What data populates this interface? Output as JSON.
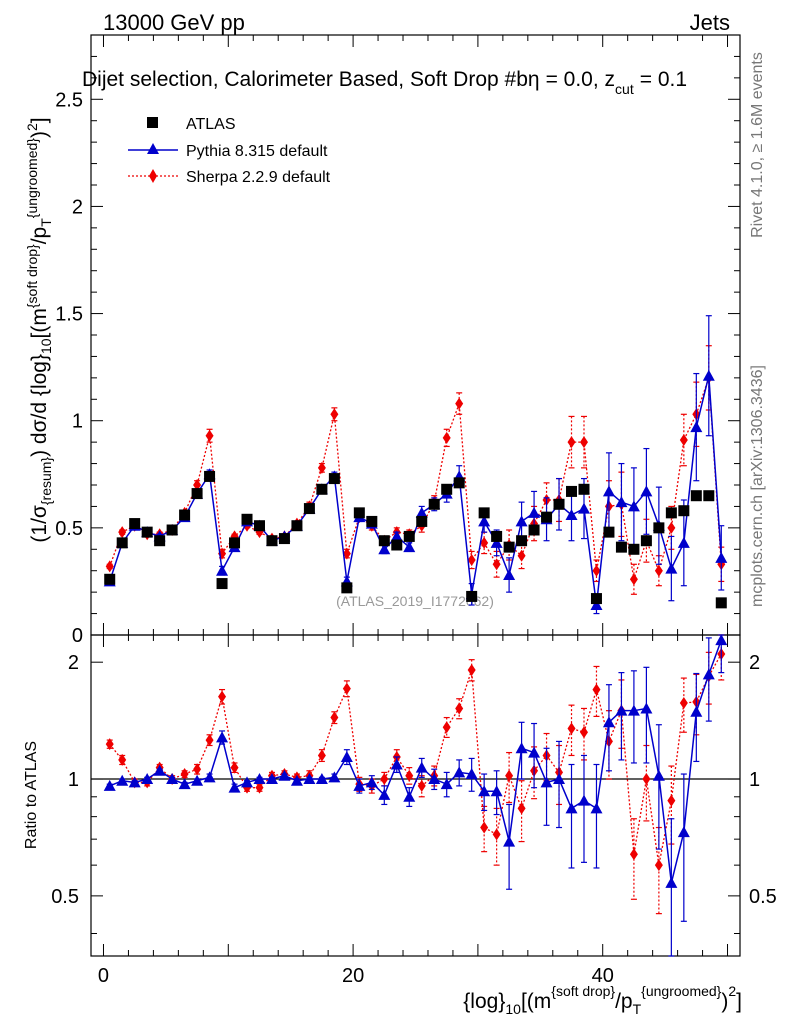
{
  "header": {
    "left": "13000 GeV pp",
    "right": "Jets"
  },
  "plot_title": "Dijet selection, Calorimeter Based, Soft Drop #b",
  "plot_title_extra": "= 0.0, z",
  "plot_title_sub": "cut",
  "plot_title_end": "= 0.1",
  "plot_title_eta": "η",
  "side_top": "Rivet 4.1.0, ≥ 1.6M events",
  "side_bottom": "mcplots.cern.ch [arXiv:1306.3436]",
  "watermark": "(ATLAS_2019_I1772062)",
  "ylabel_main": "(1/σ{resum}) dσ/d {log}10[(m{soft drop}/pT{ungroomed})2]",
  "ylabel_ratio": "Ratio to ATLAS",
  "xlabel": "{log}10[(m{soft drop}/pT{ungroomed})2]",
  "legend": [
    "ATLAS",
    "Pythia 8.315 default",
    "Sherpa 2.2.9 default"
  ],
  "colors": {
    "atlas": "#000000",
    "pythia": "#0000cc",
    "sherpa": "#ee0000"
  },
  "chart_data": {
    "type": "scatter",
    "x": [
      0.5,
      1.5,
      2.5,
      3.5,
      4.5,
      5.5,
      6.5,
      7.5,
      8.5,
      9.5,
      10.5,
      11.5,
      12.5,
      13.5,
      14.5,
      15.5,
      16.5,
      17.5,
      18.5,
      19.5,
      20.5,
      21.5,
      22.5,
      23.5,
      24.5,
      25.5,
      26.5,
      27.5,
      28.5,
      29.5,
      30.5,
      31.5,
      32.5,
      33.5,
      34.5,
      35.5,
      36.5,
      37.5,
      38.5,
      39.5,
      40.5,
      41.5,
      42.5,
      43.5,
      44.5,
      45.5,
      46.5,
      47.5,
      48.5,
      49.5
    ],
    "xlim": [
      -1,
      51
    ],
    "x_ticks": [
      0,
      20,
      40
    ],
    "main_ylim": [
      0,
      2.8
    ],
    "main_y_ticks": [
      "0",
      "0.5",
      "1",
      "1.5",
      "2",
      "2.5"
    ],
    "ratio_ylim": [
      0.35,
      2.35
    ],
    "ratio_y_ticks": [
      "0.5",
      "1",
      "2"
    ],
    "series": [
      {
        "name": "ATLAS",
        "values": [
          0.26,
          0.43,
          0.52,
          0.48,
          0.44,
          0.49,
          0.56,
          0.66,
          0.74,
          0.24,
          0.43,
          0.54,
          0.51,
          0.44,
          0.45,
          0.51,
          0.59,
          0.68,
          0.73,
          0.22,
          0.57,
          0.53,
          0.44,
          0.42,
          0.46,
          0.53,
          0.61,
          0.68,
          0.71,
          0.18,
          0.57,
          0.46,
          0.41,
          0.44,
          0.49,
          0.55,
          0.61,
          0.67,
          0.68,
          0.17,
          0.48,
          0.41,
          0.4,
          0.44,
          0.5,
          0.57,
          0.58,
          0.65,
          0.65,
          0.15
        ]
      },
      {
        "name": "Pythia 8.315 default",
        "values": [
          0.25,
          0.43,
          0.51,
          0.48,
          0.46,
          0.49,
          0.55,
          0.66,
          0.75,
          0.3,
          0.41,
          0.53,
          0.51,
          0.44,
          0.46,
          0.51,
          0.59,
          0.68,
          0.74,
          0.25,
          0.55,
          0.52,
          0.4,
          0.46,
          0.41,
          0.57,
          0.61,
          0.66,
          0.74,
          0.19,
          0.53,
          0.43,
          0.28,
          0.53,
          0.57,
          0.54,
          0.61,
          0.56,
          0.59,
          0.14,
          0.67,
          0.62,
          0.6,
          0.67,
          0.51,
          0.31,
          0.43,
          0.97,
          1.21,
          0.36
        ],
        "errors": [
          0.01,
          0.01,
          0.01,
          0.01,
          0.01,
          0.01,
          0.01,
          0.01,
          0.02,
          0.02,
          0.01,
          0.01,
          0.01,
          0.01,
          0.01,
          0.01,
          0.01,
          0.01,
          0.02,
          0.02,
          0.02,
          0.02,
          0.02,
          0.02,
          0.02,
          0.03,
          0.03,
          0.04,
          0.05,
          0.05,
          0.05,
          0.06,
          0.08,
          0.09,
          0.1,
          0.1,
          0.12,
          0.12,
          0.14,
          0.04,
          0.18,
          0.18,
          0.18,
          0.2,
          0.18,
          0.15,
          0.2,
          0.25,
          0.28,
          0.15
        ]
      },
      {
        "name": "Sherpa 2.2.9 default",
        "values": [
          0.32,
          0.48,
          0.51,
          0.47,
          0.47,
          0.49,
          0.57,
          0.7,
          0.93,
          0.38,
          0.46,
          0.51,
          0.48,
          0.45,
          0.46,
          0.52,
          0.6,
          0.78,
          1.03,
          0.38,
          0.55,
          0.51,
          0.44,
          0.48,
          0.47,
          0.51,
          0.62,
          0.92,
          1.08,
          0.35,
          0.43,
          0.33,
          0.42,
          0.37,
          0.52,
          0.63,
          0.63,
          0.9,
          0.9,
          0.3,
          0.6,
          0.61,
          0.26,
          0.44,
          0.3,
          0.5,
          0.91,
          1.03,
          1.2,
          0.33
        ],
        "errors": [
          0.01,
          0.01,
          0.01,
          0.01,
          0.01,
          0.01,
          0.01,
          0.02,
          0.03,
          0.02,
          0.01,
          0.01,
          0.01,
          0.01,
          0.01,
          0.01,
          0.02,
          0.02,
          0.03,
          0.02,
          0.02,
          0.02,
          0.02,
          0.02,
          0.02,
          0.03,
          0.03,
          0.04,
          0.05,
          0.04,
          0.05,
          0.06,
          0.07,
          0.06,
          0.08,
          0.08,
          0.1,
          0.12,
          0.12,
          0.05,
          0.12,
          0.15,
          0.07,
          0.1,
          0.07,
          0.1,
          0.12,
          0.15,
          0.15,
          0.08
        ]
      }
    ],
    "ratio_series": [
      {
        "name": "Pythia 8.315 default",
        "values": [
          0.96,
          0.99,
          0.98,
          1.0,
          1.05,
          1.0,
          0.97,
          0.99,
          1.01,
          1.28,
          0.95,
          0.98,
          1.0,
          1.0,
          1.02,
          0.99,
          1.0,
          1.0,
          1.01,
          1.14,
          0.96,
          0.98,
          0.91,
          1.09,
          0.9,
          1.07,
          1.0,
          0.97,
          1.04,
          1.03,
          0.93,
          0.93,
          0.69,
          1.2,
          1.17,
          0.98,
          1.0,
          0.84,
          0.88,
          0.84,
          1.4,
          1.5,
          1.5,
          1.52,
          1.02,
          0.54,
          0.73,
          1.49,
          1.86,
          2.28
        ],
        "errors": [
          0.01,
          0.01,
          0.01,
          0.01,
          0.01,
          0.01,
          0.01,
          0.01,
          0.02,
          0.05,
          0.02,
          0.01,
          0.01,
          0.01,
          0.01,
          0.01,
          0.01,
          0.01,
          0.02,
          0.05,
          0.04,
          0.04,
          0.05,
          0.05,
          0.05,
          0.06,
          0.06,
          0.07,
          0.08,
          0.1,
          0.1,
          0.12,
          0.17,
          0.2,
          0.22,
          0.22,
          0.25,
          0.25,
          0.27,
          0.25,
          0.35,
          0.38,
          0.4,
          0.42,
          0.36,
          0.25,
          0.3,
          0.38,
          0.45,
          0.4
        ]
      },
      {
        "name": "Sherpa 2.2.9 default",
        "values": [
          1.23,
          1.12,
          0.98,
          0.98,
          1.07,
          1.0,
          1.03,
          1.06,
          1.26,
          1.63,
          1.07,
          0.95,
          0.95,
          1.02,
          1.03,
          1.01,
          1.02,
          1.15,
          1.44,
          1.71,
          0.97,
          0.96,
          1.0,
          1.14,
          1.02,
          0.96,
          1.02,
          1.36,
          1.52,
          1.91,
          0.75,
          0.72,
          1.02,
          0.84,
          1.05,
          1.15,
          1.04,
          1.35,
          1.32,
          1.7,
          1.25,
          1.5,
          0.64,
          1.0,
          0.6,
          0.88,
          1.57,
          1.58,
          1.84,
          2.1
        ],
        "errors": [
          0.03,
          0.03,
          0.02,
          0.02,
          0.02,
          0.02,
          0.02,
          0.03,
          0.04,
          0.07,
          0.03,
          0.02,
          0.02,
          0.02,
          0.02,
          0.02,
          0.03,
          0.04,
          0.05,
          0.08,
          0.04,
          0.04,
          0.04,
          0.05,
          0.05,
          0.06,
          0.06,
          0.08,
          0.09,
          0.12,
          0.1,
          0.12,
          0.15,
          0.15,
          0.16,
          0.16,
          0.18,
          0.2,
          0.2,
          0.25,
          0.25,
          0.3,
          0.15,
          0.22,
          0.15,
          0.2,
          0.25,
          0.28,
          0.28,
          0.3
        ]
      }
    ]
  }
}
